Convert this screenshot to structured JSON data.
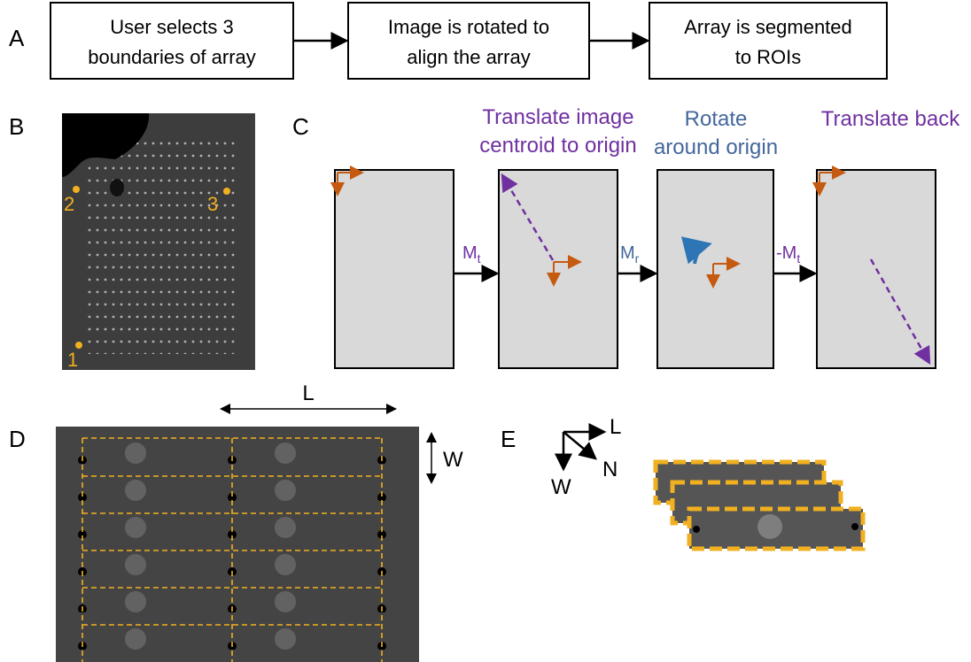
{
  "panel_labels": [
    "A",
    "B",
    "C",
    "D",
    "E"
  ],
  "flow_steps": [
    [
      "User selects 3",
      "boundaries of array"
    ],
    [
      "Image is rotated to",
      "align the array"
    ],
    [
      "Array is segmented",
      "to ROIs"
    ]
  ],
  "boundary_points": [
    "1",
    "2",
    "3"
  ],
  "transform_titles": [
    [
      "Translate image",
      "centroid to origin"
    ],
    [
      "Rotate",
      "around origin"
    ],
    [
      "Translate back"
    ]
  ],
  "operators": [
    {
      "symbol": "M",
      "subscript": "t"
    },
    {
      "symbol": "M",
      "subscript": "r"
    },
    {
      "symbol": "-M",
      "subscript": "t"
    }
  ],
  "roi_dimensions": {
    "length": "L",
    "width": "W"
  },
  "axes": {
    "length": "L",
    "normal": "N",
    "width": "W"
  }
}
